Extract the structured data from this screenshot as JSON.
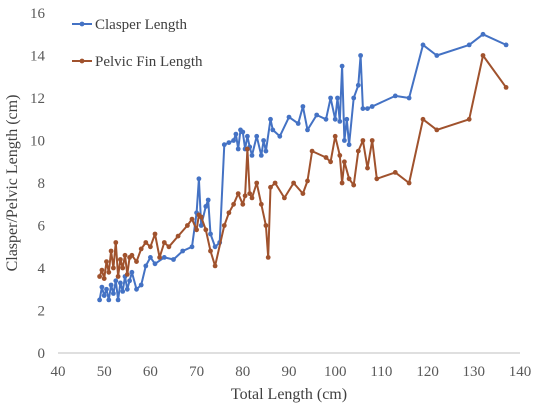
{
  "chart_data": {
    "type": "line",
    "title": "",
    "xlabel": "Total Length (cm)",
    "ylabel": "Clasper/Pelvic Length (cm)",
    "xlim": [
      40,
      140
    ],
    "ylim": [
      0,
      16
    ],
    "xticks": [
      40,
      50,
      60,
      70,
      80,
      90,
      100,
      110,
      120,
      130,
      140
    ],
    "yticks": [
      0,
      2,
      4,
      6,
      8,
      10,
      12,
      14,
      16
    ],
    "grid": false,
    "legend_position": "top-left",
    "series": [
      {
        "name": "Clasper Length",
        "color": "#4472C4",
        "points": [
          [
            49,
            2.5
          ],
          [
            49.5,
            3.1
          ],
          [
            50,
            2.7
          ],
          [
            50.5,
            3.0
          ],
          [
            51,
            2.5
          ],
          [
            51.5,
            3.2
          ],
          [
            52,
            2.8
          ],
          [
            52.5,
            3.4
          ],
          [
            53,
            2.5
          ],
          [
            53.5,
            3.3
          ],
          [
            54,
            2.9
          ],
          [
            54.5,
            3.6
          ],
          [
            55,
            3.0
          ],
          [
            55.5,
            3.4
          ],
          [
            56,
            3.8
          ],
          [
            57,
            3.0
          ],
          [
            58,
            3.2
          ],
          [
            59,
            4.1
          ],
          [
            60,
            4.5
          ],
          [
            61,
            4.2
          ],
          [
            63,
            4.5
          ],
          [
            65,
            4.4
          ],
          [
            67,
            4.8
          ],
          [
            69,
            5.0
          ],
          [
            70,
            6.6
          ],
          [
            70.5,
            8.2
          ],
          [
            71,
            6.0
          ],
          [
            72,
            6.9
          ],
          [
            72.5,
            7.2
          ],
          [
            73,
            5.6
          ],
          [
            74,
            5.0
          ],
          [
            75,
            5.2
          ],
          [
            76,
            9.8
          ],
          [
            77,
            9.9
          ],
          [
            78,
            10.0
          ],
          [
            78.5,
            10.3
          ],
          [
            79,
            9.6
          ],
          [
            79.5,
            10.5
          ],
          [
            80,
            10.4
          ],
          [
            80.5,
            9.6
          ],
          [
            81,
            10.2
          ],
          [
            81.5,
            9.7
          ],
          [
            82,
            9.3
          ],
          [
            83,
            10.2
          ],
          [
            84,
            9.3
          ],
          [
            84.5,
            10.0
          ],
          [
            85,
            9.5
          ],
          [
            86,
            11.0
          ],
          [
            86.5,
            10.5
          ],
          [
            88,
            10.2
          ],
          [
            90,
            11.1
          ],
          [
            92,
            10.8
          ],
          [
            93,
            11.6
          ],
          [
            94,
            10.5
          ],
          [
            96,
            11.2
          ],
          [
            98,
            11.0
          ],
          [
            99,
            12.0
          ],
          [
            100,
            11.0
          ],
          [
            100.5,
            12.0
          ],
          [
            101,
            10.9
          ],
          [
            101.5,
            13.5
          ],
          [
            102,
            10.0
          ],
          [
            102.5,
            11.0
          ],
          [
            103,
            9.8
          ],
          [
            104,
            12.0
          ],
          [
            105,
            12.6
          ],
          [
            105.5,
            14.0
          ],
          [
            106,
            11.5
          ],
          [
            107,
            11.5
          ],
          [
            108,
            11.6
          ],
          [
            113,
            12.1
          ],
          [
            116,
            12.0
          ],
          [
            119,
            14.5
          ],
          [
            122,
            14.0
          ],
          [
            129,
            14.5
          ],
          [
            132,
            15.0
          ],
          [
            137,
            14.5
          ]
        ]
      },
      {
        "name": "Pelvic Fin Length",
        "color": "#A0522D",
        "points": [
          [
            49,
            3.6
          ],
          [
            49.5,
            3.9
          ],
          [
            50,
            3.5
          ],
          [
            50.5,
            4.3
          ],
          [
            51,
            3.8
          ],
          [
            51.5,
            4.8
          ],
          [
            52,
            4.0
          ],
          [
            52.5,
            5.2
          ],
          [
            53,
            3.6
          ],
          [
            53.5,
            4.4
          ],
          [
            54,
            4.0
          ],
          [
            54.5,
            4.6
          ],
          [
            55,
            3.7
          ],
          [
            55.5,
            4.5
          ],
          [
            56,
            4.6
          ],
          [
            57,
            4.3
          ],
          [
            58,
            4.9
          ],
          [
            59,
            5.2
          ],
          [
            60,
            5.0
          ],
          [
            61,
            5.6
          ],
          [
            62,
            4.5
          ],
          [
            63,
            5.2
          ],
          [
            64,
            5.0
          ],
          [
            66,
            5.5
          ],
          [
            68,
            6.0
          ],
          [
            69,
            6.3
          ],
          [
            70,
            5.8
          ],
          [
            70.5,
            6.5
          ],
          [
            71,
            6.4
          ],
          [
            72,
            5.8
          ],
          [
            73,
            4.8
          ],
          [
            74,
            4.1
          ],
          [
            76,
            6.0
          ],
          [
            77,
            6.6
          ],
          [
            78,
            7.0
          ],
          [
            79,
            7.5
          ],
          [
            80,
            7.0
          ],
          [
            80.5,
            7.4
          ],
          [
            81,
            9.6
          ],
          [
            81.5,
            7.5
          ],
          [
            82,
            7.3
          ],
          [
            83,
            8.0
          ],
          [
            84,
            7.0
          ],
          [
            85,
            6.0
          ],
          [
            85.5,
            4.5
          ],
          [
            86,
            7.8
          ],
          [
            87,
            8.0
          ],
          [
            89,
            7.3
          ],
          [
            91,
            8.0
          ],
          [
            93,
            7.5
          ],
          [
            94,
            8.1
          ],
          [
            95,
            9.5
          ],
          [
            98,
            9.2
          ],
          [
            99,
            9.0
          ],
          [
            100,
            10.2
          ],
          [
            101,
            9.3
          ],
          [
            101.5,
            8.0
          ],
          [
            102,
            9.0
          ],
          [
            103,
            8.2
          ],
          [
            104,
            7.9
          ],
          [
            105,
            9.5
          ],
          [
            106,
            10.0
          ],
          [
            107,
            8.7
          ],
          [
            108,
            10.0
          ],
          [
            109,
            8.2
          ],
          [
            113,
            8.5
          ],
          [
            116,
            8.0
          ],
          [
            119,
            11.0
          ],
          [
            122,
            10.5
          ],
          [
            129,
            11.0
          ],
          [
            132,
            14.0
          ],
          [
            137,
            12.5
          ]
        ]
      }
    ]
  }
}
